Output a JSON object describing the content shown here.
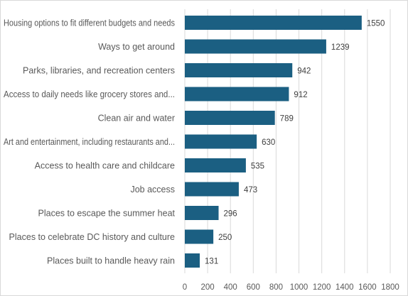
{
  "chart_data": {
    "type": "bar",
    "orientation": "horizontal",
    "title": "",
    "xlabel": "",
    "ylabel": "",
    "categories": [
      "Housing options to fit different budgets and needs",
      "Ways to get around",
      "Parks, libraries, and recreation centers",
      "Access to daily needs like grocery stores and...",
      "Clean air and water",
      "Art and entertainment, including restaurants and...",
      "Access to health care and childcare",
      "Job access",
      "Places to escape the summer heat",
      "Places to celebrate DC history and culture",
      "Places built to handle heavy rain"
    ],
    "values": [
      1550,
      1239,
      942,
      912,
      789,
      630,
      535,
      473,
      296,
      250,
      131
    ],
    "xlim": [
      0,
      1800
    ],
    "xticks": [
      0,
      200,
      400,
      600,
      800,
      1000,
      1200,
      1400,
      1600,
      1800
    ],
    "grid": true,
    "bar_color": "#1b5f82"
  }
}
